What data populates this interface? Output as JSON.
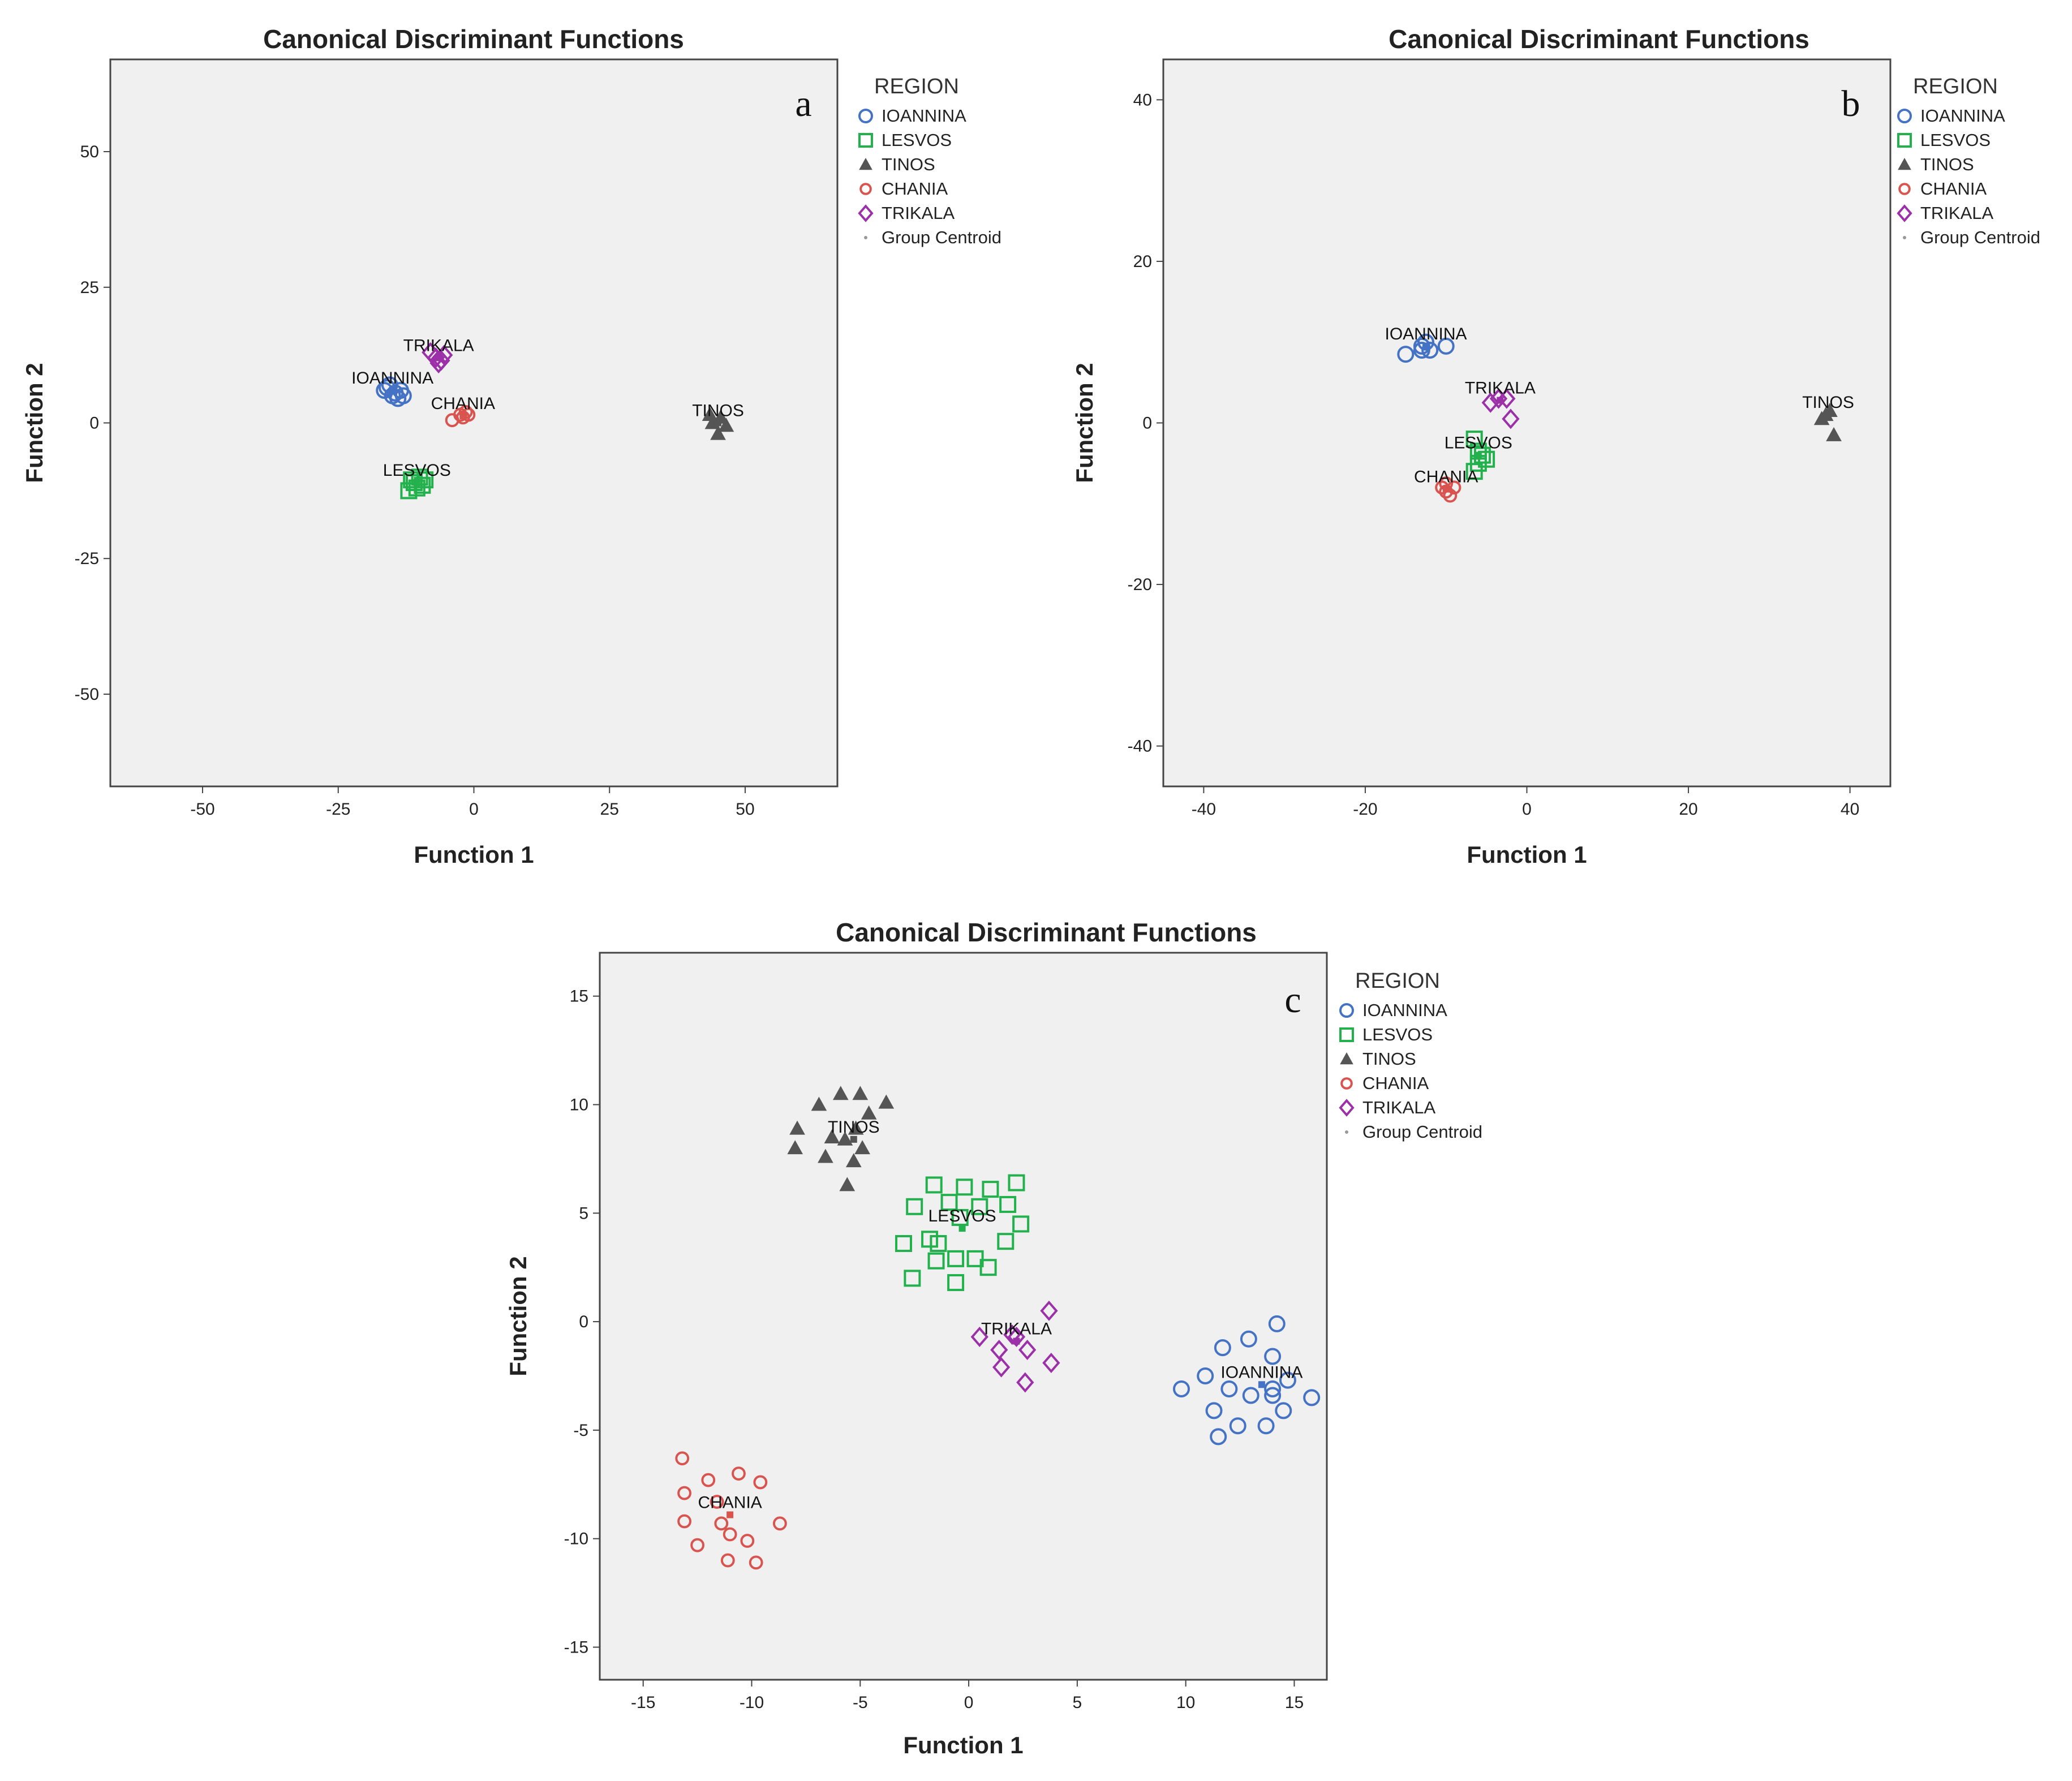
{
  "legend": {
    "title": "REGION",
    "entries": [
      {
        "key": "IOANNINA",
        "label": "IOANNINA",
        "marker": "circle",
        "color": "#4472C4"
      },
      {
        "key": "LESVOS",
        "label": "LESVOS",
        "marker": "square",
        "color": "#22B14C"
      },
      {
        "key": "TINOS",
        "label": "TINOS",
        "marker": "triangle",
        "color": "#555555"
      },
      {
        "key": "CHANIA",
        "label": "CHANIA",
        "marker": "dot",
        "color": "#D9534F"
      },
      {
        "key": "TRIKALA",
        "label": "TRIKALA",
        "marker": "diamond",
        "color": "#9B30A8"
      },
      {
        "key": "CENTROID",
        "label": "Group Centroid",
        "marker": "centroid",
        "color": "#999999"
      }
    ]
  },
  "chart_data": [
    {
      "id": "a",
      "type": "scatter",
      "panel_label": "a",
      "title": "Canonical Discriminant Functions",
      "xlabel": "Function 1",
      "ylabel": "Function 2",
      "xlim": [
        -67,
        67
      ],
      "ylim": [
        -67,
        67
      ],
      "xticks": [
        -50,
        -25,
        0,
        25,
        50
      ],
      "yticks": [
        -50,
        -25,
        0,
        25,
        50
      ],
      "series": [
        {
          "name": "IOANNINA",
          "points": [
            [
              -16,
              6.5
            ],
            [
              -15,
              5
            ],
            [
              -14,
              4.5
            ],
            [
              -13.5,
              6
            ],
            [
              -15.5,
              7
            ],
            [
              -14.5,
              5.5
            ],
            [
              -16.5,
              6
            ],
            [
              -13,
              5
            ]
          ]
        },
        {
          "name": "LESVOS",
          "points": [
            [
              -12,
              -12.5
            ],
            [
              -11,
              -11
            ],
            [
              -10,
              -10
            ],
            [
              -9.5,
              -11.5
            ],
            [
              -11.5,
              -10.5
            ],
            [
              -10.5,
              -12
            ],
            [
              -9,
              -10.5
            ]
          ]
        },
        {
          "name": "TINOS",
          "points": [
            [
              44,
              0
            ],
            [
              45,
              -2
            ],
            [
              46.5,
              -0.5
            ],
            [
              43.5,
              1.5
            ],
            [
              45.5,
              1
            ]
          ]
        },
        {
          "name": "CHANIA",
          "points": [
            [
              -4,
              0.5
            ],
            [
              -2.5,
              1.5
            ],
            [
              -1.5,
              2
            ],
            [
              -2,
              1
            ],
            [
              -1,
              1.5
            ]
          ]
        },
        {
          "name": "TRIKALA",
          "points": [
            [
              -8,
              13
            ],
            [
              -7,
              12
            ],
            [
              -6.5,
              11
            ],
            [
              -5.5,
              12.5
            ],
            [
              -6,
              11.5
            ]
          ]
        }
      ],
      "centroids": [
        {
          "name": "IOANNINA",
          "label": "IOANNINA",
          "x": -15,
          "y": 6
        },
        {
          "name": "LESVOS",
          "label": "LESVOS",
          "x": -10.5,
          "y": -11
        },
        {
          "name": "TINOS",
          "label": "TINOS",
          "x": 45,
          "y": 0
        },
        {
          "name": "CHANIA",
          "label": "CHANIA",
          "x": -2,
          "y": 1.3
        },
        {
          "name": "TRIKALA",
          "label": "TRIKALA",
          "x": -6.5,
          "y": 12
        }
      ]
    },
    {
      "id": "b",
      "type": "scatter",
      "panel_label": "b",
      "title": "Canonical Discriminant Functions",
      "xlabel": "Function 1",
      "ylabel": "Function 2",
      "xlim": [
        -45,
        45
      ],
      "ylim": [
        -45,
        45
      ],
      "xticks": [
        -40,
        -20,
        0,
        20,
        40
      ],
      "yticks": [
        -40,
        -20,
        0,
        20,
        40
      ],
      "series": [
        {
          "name": "IOANNINA",
          "points": [
            [
              -15,
              8.5
            ],
            [
              -13,
              9
            ],
            [
              -12.5,
              10
            ],
            [
              -12,
              9
            ],
            [
              -10,
              9.5
            ],
            [
              -13,
              9.5
            ]
          ]
        },
        {
          "name": "LESVOS",
          "points": [
            [
              -6.5,
              -2
            ],
            [
              -6,
              -3.5
            ],
            [
              -5.5,
              -4
            ],
            [
              -6,
              -5
            ],
            [
              -5,
              -4.5
            ],
            [
              -6.5,
              -6
            ]
          ]
        },
        {
          "name": "TINOS",
          "points": [
            [
              36.5,
              0.5
            ],
            [
              37.5,
              1.5
            ],
            [
              38,
              -1.5
            ],
            [
              37,
              1
            ]
          ]
        },
        {
          "name": "CHANIA",
          "points": [
            [
              -10.5,
              -8
            ],
            [
              -10,
              -8.5
            ],
            [
              -9.5,
              -9
            ],
            [
              -9,
              -8
            ],
            [
              -10,
              -7.5
            ]
          ]
        },
        {
          "name": "TRIKALA",
          "points": [
            [
              -4.5,
              2.5
            ],
            [
              -3.5,
              3
            ],
            [
              -2.5,
              3
            ],
            [
              -2,
              0.5
            ]
          ]
        }
      ],
      "centroids": [
        {
          "name": "IOANNINA",
          "label": "IOANNINA",
          "x": -12.5,
          "y": 9.5
        },
        {
          "name": "LESVOS",
          "label": "LESVOS",
          "x": -6,
          "y": -4
        },
        {
          "name": "TINOS",
          "label": "TINOS",
          "x": 37.3,
          "y": 1
        },
        {
          "name": "CHANIA",
          "label": "CHANIA",
          "x": -10,
          "y": -8.2
        },
        {
          "name": "TRIKALA",
          "label": "TRIKALA",
          "x": -3.3,
          "y": 2.8
        }
      ]
    },
    {
      "id": "c",
      "type": "scatter",
      "panel_label": "c",
      "title": "Canonical Discriminant Functions",
      "xlabel": "Function 1",
      "ylabel": "Function 2",
      "xlim": [
        -17,
        16.5
      ],
      "ylim": [
        -16.5,
        17
      ],
      "xticks": [
        -15,
        -10,
        -5,
        0,
        5,
        10,
        15
      ],
      "yticks": [
        -15,
        -10,
        -5,
        0,
        5,
        10,
        15
      ],
      "series": [
        {
          "name": "IOANNINA",
          "points": [
            [
              9.8,
              -3.1
            ],
            [
              10.9,
              -2.5
            ],
            [
              11.3,
              -4.1
            ],
            [
              11.5,
              -5.3
            ],
            [
              11.7,
              -1.2
            ],
            [
              12,
              -3.1
            ],
            [
              12.4,
              -4.8
            ],
            [
              12.9,
              -0.8
            ],
            [
              13,
              -3.4
            ],
            [
              13.7,
              -4.8
            ],
            [
              14,
              -1.6
            ],
            [
              14,
              -3.1
            ],
            [
              14.2,
              -0.1
            ],
            [
              14.5,
              -4.1
            ],
            [
              14.7,
              -2.7
            ],
            [
              15.8,
              -3.5
            ],
            [
              14,
              -3.4
            ]
          ]
        },
        {
          "name": "LESVOS",
          "points": [
            [
              -2.5,
              5.3
            ],
            [
              -1.6,
              6.3
            ],
            [
              -3,
              3.6
            ],
            [
              -2.6,
              2
            ],
            [
              -1.5,
              2.8
            ],
            [
              -1.4,
              3.6
            ],
            [
              -0.9,
              5.5
            ],
            [
              -0.6,
              2.9
            ],
            [
              -0.6,
              1.8
            ],
            [
              -0.4,
              4.8
            ],
            [
              -0.2,
              6.2
            ],
            [
              0.3,
              2.9
            ],
            [
              0.5,
              5.3
            ],
            [
              0.9,
              2.5
            ],
            [
              1,
              6.1
            ],
            [
              1.7,
              3.7
            ],
            [
              1.8,
              5.4
            ],
            [
              2.2,
              6.4
            ],
            [
              2.4,
              4.5
            ],
            [
              -1.8,
              3.8
            ]
          ]
        },
        {
          "name": "TINOS",
          "points": [
            [
              -7.9,
              8.9
            ],
            [
              -8,
              8
            ],
            [
              -6.9,
              10
            ],
            [
              -6.6,
              7.6
            ],
            [
              -6.3,
              8.5
            ],
            [
              -5.9,
              10.5
            ],
            [
              -5.7,
              8.4
            ],
            [
              -5.6,
              6.3
            ],
            [
              -5.3,
              7.4
            ],
            [
              -5,
              10.5
            ],
            [
              -4.9,
              8
            ],
            [
              -4.6,
              9.6
            ],
            [
              -3.8,
              10.1
            ],
            [
              -5.2,
              8.9
            ]
          ]
        },
        {
          "name": "CHANIA",
          "points": [
            [
              -13.2,
              -6.3
            ],
            [
              -13.1,
              -7.9
            ],
            [
              -13.1,
              -9.2
            ],
            [
              -12.5,
              -10.3
            ],
            [
              -12,
              -7.3
            ],
            [
              -11.6,
              -8.3
            ],
            [
              -11.4,
              -9.3
            ],
            [
              -11.1,
              -11
            ],
            [
              -11,
              -9.8
            ],
            [
              -10.6,
              -7
            ],
            [
              -10.2,
              -10.1
            ],
            [
              -9.8,
              -11.1
            ],
            [
              -9.6,
              -7.4
            ],
            [
              -8.7,
              -9.3
            ]
          ]
        },
        {
          "name": "TRIKALA",
          "points": [
            [
              0.5,
              -0.7
            ],
            [
              1.4,
              -1.3
            ],
            [
              1.5,
              -2.1
            ],
            [
              2,
              -0.6
            ],
            [
              2.6,
              -2.8
            ],
            [
              2.7,
              -1.3
            ],
            [
              3.7,
              0.5
            ],
            [
              3.8,
              -1.9
            ],
            [
              2.2,
              -0.7
            ]
          ]
        }
      ],
      "centroids": [
        {
          "name": "IOANNINA",
          "label": "IOANNINA",
          "x": 13.5,
          "y": -2.9
        },
        {
          "name": "LESVOS",
          "label": "LESVOS",
          "x": -0.3,
          "y": 4.3
        },
        {
          "name": "TINOS",
          "label": "TINOS",
          "x": -5.3,
          "y": 8.4
        },
        {
          "name": "CHANIA",
          "label": "CHANIA",
          "x": -11,
          "y": -8.9
        },
        {
          "name": "TRIKALA",
          "label": "TRIKALA",
          "x": 2.2,
          "y": -0.9
        }
      ]
    }
  ]
}
